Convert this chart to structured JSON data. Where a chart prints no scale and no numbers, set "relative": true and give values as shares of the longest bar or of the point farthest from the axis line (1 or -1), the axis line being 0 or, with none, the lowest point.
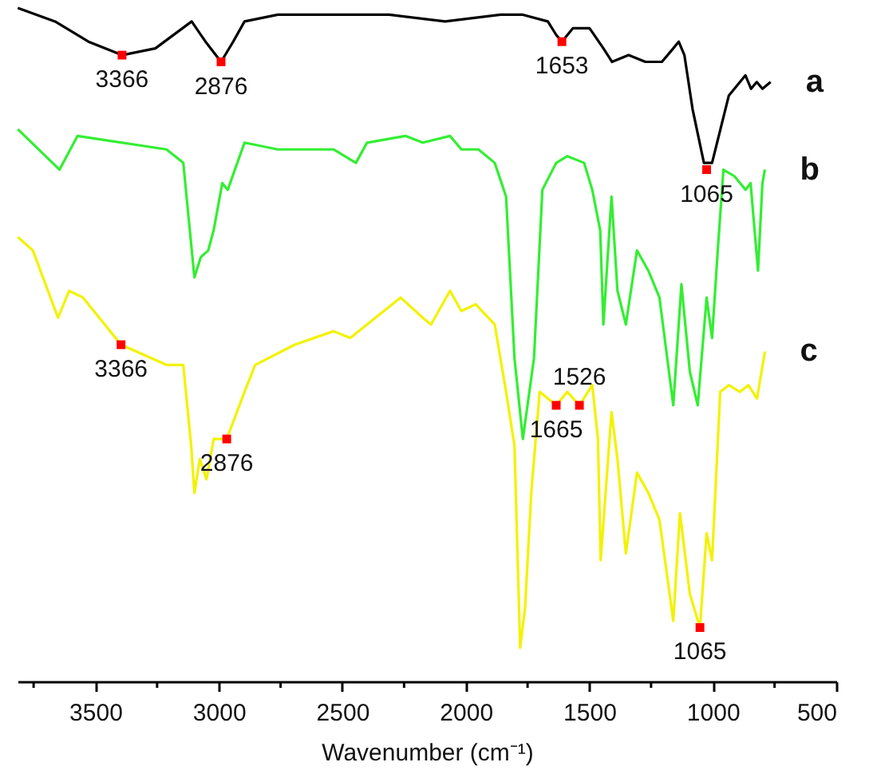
{
  "chart_data": {
    "type": "line",
    "xlabel": "Wavenumber (cm⁻¹)",
    "relative": true,
    "legend": false,
    "tick_labels": "x",
    "xlim": [
      3815,
      500
    ],
    "xticks": [
      {
        "value": 3750,
        "label": null
      },
      3500,
      {
        "value": 3250,
        "label": null
      },
      3000,
      {
        "value": 2750,
        "label": null
      },
      2500,
      {
        "value": 2250,
        "label": null
      },
      2000,
      {
        "value": 1750,
        "label": null
      },
      1500,
      {
        "value": 1250,
        "label": null
      },
      1000,
      {
        "value": 750,
        "label": null
      },
      500
    ],
    "series": [
      {
        "name": "a",
        "color": "#000000",
        "x": [
          3814,
          3663,
          3528,
          3392,
          3257,
          3110,
          3054,
          2991,
          2942,
          2896,
          2761,
          2535,
          2310,
          2084,
          1859,
          1769,
          1668,
          1634,
          1611,
          1566,
          1499,
          1443,
          1408,
          1341,
          1273,
          1206,
          1160,
          1138,
          1115,
          1082,
          1036,
          1003,
          969,
          935,
          890,
          868,
          845,
          822,
          799,
          766
        ],
        "values": [
          1.0,
          0.98,
          0.95,
          0.93,
          0.94,
          0.98,
          0.95,
          0.92,
          0.95,
          0.98,
          0.99,
          0.99,
          0.99,
          0.98,
          0.99,
          0.99,
          0.98,
          0.96,
          0.95,
          0.97,
          0.97,
          0.94,
          0.92,
          0.93,
          0.92,
          0.92,
          0.94,
          0.95,
          0.93,
          0.85,
          0.77,
          0.77,
          0.82,
          0.87,
          0.89,
          0.9,
          0.88,
          0.89,
          0.88,
          0.89
        ]
      },
      {
        "name": "b",
        "color": "#33ee33",
        "x": [
          3814,
          3645,
          3572,
          3212,
          3144,
          3099,
          3073,
          3043,
          3021,
          2986,
          2964,
          2896,
          2762,
          2536,
          2445,
          2400,
          2245,
          2174,
          2064,
          2018,
          1949,
          1883,
          1837,
          1803,
          1769,
          1724,
          1690,
          1634,
          1589,
          1521,
          1488,
          1456,
          1443,
          1410,
          1386,
          1352,
          1307,
          1261,
          1216,
          1160,
          1127,
          1093,
          1061,
          1025,
          1003,
          980,
          957,
          912,
          867,
          847,
          817,
          799,
          789
        ],
        "values": [
          0.82,
          0.76,
          0.81,
          0.79,
          0.77,
          0.6,
          0.63,
          0.64,
          0.67,
          0.74,
          0.73,
          0.8,
          0.79,
          0.79,
          0.77,
          0.8,
          0.81,
          0.8,
          0.81,
          0.79,
          0.79,
          0.77,
          0.72,
          0.48,
          0.36,
          0.48,
          0.73,
          0.77,
          0.78,
          0.77,
          0.73,
          0.67,
          0.53,
          0.72,
          0.58,
          0.53,
          0.64,
          0.61,
          0.57,
          0.41,
          0.59,
          0.46,
          0.41,
          0.57,
          0.51,
          0.64,
          0.76,
          0.75,
          0.73,
          0.74,
          0.61,
          0.74,
          0.76
        ]
      },
      {
        "name": "c",
        "color": "#f2f200",
        "x": [
          3814,
          3753,
          3651,
          3606,
          3550,
          3396,
          3212,
          3144,
          3112,
          3099,
          3077,
          3050,
          3021,
          2968,
          2896,
          2853,
          2693,
          2536,
          2468,
          2264,
          2174,
          2141,
          2064,
          2018,
          1960,
          1883,
          1837,
          1803,
          1780,
          1760,
          1735,
          1701,
          1634,
          1589,
          1540,
          1488,
          1465,
          1454,
          1410,
          1386,
          1352,
          1307,
          1261,
          1216,
          1160,
          1133,
          1093,
          1052,
          1025,
          1003,
          970,
          935,
          890,
          856,
          821,
          789
        ],
        "values": [
          0.66,
          0.64,
          0.54,
          0.58,
          0.57,
          0.5,
          0.47,
          0.47,
          0.35,
          0.28,
          0.33,
          0.3,
          0.36,
          0.36,
          0.43,
          0.47,
          0.5,
          0.52,
          0.51,
          0.57,
          0.54,
          0.53,
          0.58,
          0.55,
          0.56,
          0.53,
          0.43,
          0.35,
          0.05,
          0.11,
          0.28,
          0.43,
          0.41,
          0.43,
          0.41,
          0.44,
          0.36,
          0.18,
          0.4,
          0.33,
          0.19,
          0.31,
          0.28,
          0.24,
          0.09,
          0.25,
          0.13,
          0.08,
          0.22,
          0.18,
          0.43,
          0.44,
          0.43,
          0.44,
          0.42,
          0.49
        ]
      }
    ],
    "annotations": [
      {
        "text": "3366",
        "x": 3392,
        "y": 0.93
      },
      {
        "text": "2876",
        "x": 2991,
        "y": 0.92
      },
      {
        "text": "1653",
        "x": 1611,
        "y": 0.95
      },
      {
        "text": "1065",
        "x": 1025,
        "y": 0.76
      },
      {
        "text": "3366",
        "x": 3396,
        "y": 0.5
      },
      {
        "text": "2876",
        "x": 2968,
        "y": 0.36
      },
      {
        "text": "1665",
        "x": 1634,
        "y": 0.41
      },
      {
        "text": "1526",
        "x": 1540,
        "y": 0.41
      },
      {
        "text": "1065",
        "x": 1052,
        "y": 0.08
      }
    ]
  }
}
